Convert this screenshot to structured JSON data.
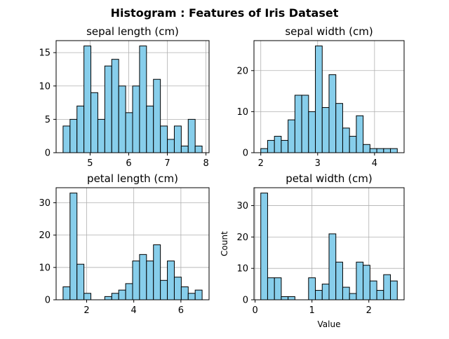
{
  "figure": {
    "suptitle": "Histogram : Features of Iris Dataset",
    "bar_color": "#87ceeb",
    "edge_color": "#000000",
    "grid_color": "#b0b0b0"
  },
  "chart_data": [
    {
      "type": "bar",
      "title": "sepal length (cm)",
      "xlabel": "",
      "ylabel": "",
      "bin_range": [
        4.3,
        7.9
      ],
      "bins": 20,
      "counts": [
        4,
        5,
        7,
        16,
        9,
        5,
        13,
        14,
        10,
        6,
        10,
        16,
        7,
        11,
        4,
        2,
        4,
        1,
        5,
        1
      ],
      "xlim": [
        4.12,
        8.08
      ],
      "ylim": [
        0,
        16.8
      ],
      "xticks": [
        5,
        6,
        7,
        8
      ],
      "yticks": [
        0,
        5,
        10,
        15
      ],
      "grid": true
    },
    {
      "type": "bar",
      "title": "sepal width (cm)",
      "xlabel": "",
      "ylabel": "",
      "bin_range": [
        2.0,
        4.4
      ],
      "bins": 20,
      "counts": [
        1,
        3,
        4,
        3,
        8,
        14,
        14,
        10,
        26,
        11,
        19,
        12,
        6,
        4,
        9,
        2,
        1,
        1,
        1,
        1
      ],
      "xlim": [
        1.88,
        4.52
      ],
      "ylim": [
        0,
        27.3
      ],
      "xticks": [
        2,
        3,
        4
      ],
      "yticks": [
        0,
        10,
        20
      ],
      "grid": true
    },
    {
      "type": "bar",
      "title": "petal length (cm)",
      "xlabel": "",
      "ylabel": "",
      "bin_range": [
        1.0,
        6.9
      ],
      "bins": 20,
      "counts": [
        4,
        33,
        11,
        2,
        0,
        0,
        1,
        2,
        3,
        5,
        12,
        14,
        12,
        17,
        6,
        12,
        7,
        4,
        2,
        3
      ],
      "xlim": [
        0.705,
        7.195
      ],
      "ylim": [
        0,
        34.65
      ],
      "xticks": [
        2,
        4,
        6
      ],
      "yticks": [
        0,
        10,
        20,
        30
      ],
      "grid": true
    },
    {
      "type": "bar",
      "title": "petal width (cm)",
      "xlabel": "Value",
      "ylabel": "Count",
      "bin_range": [
        0.1,
        2.5
      ],
      "bins": 20,
      "counts": [
        34,
        7,
        7,
        1,
        1,
        0,
        0,
        7,
        3,
        5,
        21,
        12,
        4,
        2,
        12,
        11,
        6,
        3,
        8,
        6
      ],
      "xlim": [
        -0.02,
        2.62
      ],
      "ylim": [
        0,
        35.7
      ],
      "xticks": [
        0,
        1,
        2
      ],
      "yticks": [
        0,
        10,
        20,
        30
      ],
      "grid": true
    }
  ]
}
